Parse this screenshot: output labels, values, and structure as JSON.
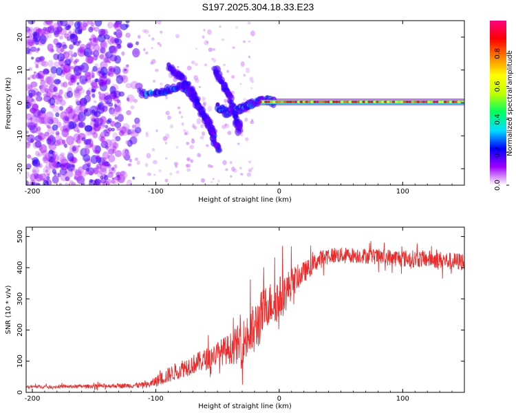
{
  "title": "S197.2025.304.18.33.E23",
  "colors": {
    "snr_line": "#ee2a2a",
    "axis": "#000000"
  },
  "chart_data": [
    {
      "type": "heatmap",
      "title": "S197.2025.304.18.33.E23",
      "xlabel": "Height of straight line (km)",
      "ylabel": "Frequency (Hz)",
      "xlim": [
        -205,
        150
      ],
      "ylim": [
        -25,
        25
      ],
      "xticks": [
        -200,
        -100,
        0,
        100
      ],
      "yticks": [
        -20,
        -10,
        0,
        10,
        20
      ],
      "colorbar": {
        "label": "Normalized spectral amplitude",
        "range": [
          0.0,
          1.0
        ],
        "ticks": [
          "0.0",
          "0.2",
          "0.4",
          "0.6",
          "0.8"
        ],
        "colormap": [
          "#ffffff",
          "#a000ff",
          "#0000ff",
          "#00e0ff",
          "#00ff60",
          "#c0ff00",
          "#ffff00",
          "#ff8000",
          "#ff0000",
          "#ff0080"
        ]
      },
      "features": {
        "noise_region_x": [
          -205,
          -110
        ],
        "carrier_line": {
          "x_start": -15,
          "x_end": 150,
          "frequency_hz": 0.3,
          "amplitude": 0.95
        },
        "arcs": [
          {
            "points": [
              [
                -112,
                3
              ],
              [
                -100,
                2.5
              ],
              [
                -90,
                4
              ],
              [
                -80,
                5
              ],
              [
                -72,
                3
              ],
              [
                -64,
                -2
              ],
              [
                -57,
                -6
              ],
              [
                -52,
                -11
              ]
            ],
            "amplitude": 0.3
          },
          {
            "points": [
              [
                -90,
                11
              ],
              [
                -80,
                8
              ],
              [
                -70,
                3
              ],
              [
                -62,
                -3
              ],
              [
                -55,
                -9
              ],
              [
                -49,
                -14
              ]
            ],
            "amplitude": 0.2
          },
          {
            "points": [
              [
                -52,
                10
              ],
              [
                -46,
                6
              ],
              [
                -40,
                2
              ],
              [
                -35,
                -4
              ],
              [
                -32,
                -9
              ]
            ],
            "amplitude": 0.2
          },
          {
            "points": [
              [
                -50,
                -1
              ],
              [
                -42,
                -3
              ],
              [
                -33,
                -2
              ],
              [
                -27,
                -1
              ],
              [
                -20,
                0
              ],
              [
                -10,
                1
              ],
              [
                -4,
                0
              ]
            ],
            "amplitude": 0.35
          }
        ]
      }
    },
    {
      "type": "line",
      "xlabel": "Height of straight line (km)",
      "ylabel": "SNR (10 * v/v)",
      "xlim": [
        -205,
        150
      ],
      "ylim": [
        0,
        530
      ],
      "xticks": [
        -200,
        -100,
        0,
        100
      ],
      "yticks": [
        0,
        100,
        200,
        300,
        400,
        500
      ],
      "series": [
        {
          "name": "SNR",
          "color": "#ee2a2a",
          "x": [
            -205,
            -180,
            -150,
            -120,
            -105,
            -100,
            -90,
            -80,
            -70,
            -60,
            -50,
            -40,
            -30,
            -20,
            -15,
            -10,
            -5,
            0,
            5,
            10,
            15,
            20,
            25,
            30,
            40,
            50,
            60,
            70,
            80,
            90,
            100,
            110,
            120,
            130,
            140,
            150
          ],
          "y": [
            18,
            18,
            20,
            22,
            25,
            35,
            55,
            75,
            90,
            105,
            125,
            140,
            160,
            200,
            240,
            280,
            290,
            300,
            320,
            350,
            370,
            385,
            400,
            420,
            440,
            440,
            440,
            438,
            435,
            433,
            430,
            428,
            428,
            425,
            420,
            420
          ],
          "noise_amplitude": [
            5,
            5,
            6,
            8,
            10,
            18,
            25,
            30,
            32,
            35,
            40,
            50,
            70,
            90,
            85,
            70,
            70,
            75,
            65,
            50,
            40,
            35,
            30,
            30,
            28,
            25,
            25,
            25,
            25,
            28,
            28,
            28,
            28,
            28,
            28,
            30
          ]
        }
      ]
    }
  ]
}
